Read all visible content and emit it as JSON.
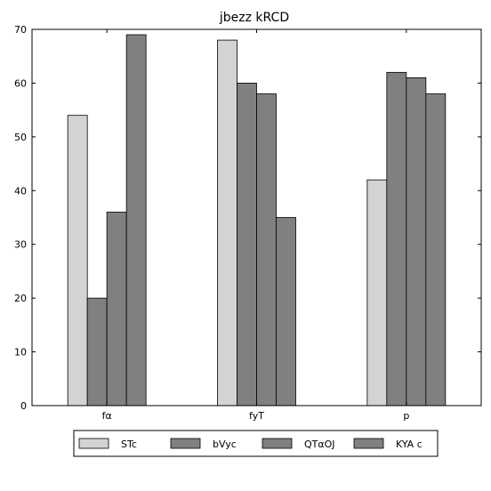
{
  "chart_data": {
    "type": "bar",
    "title": "jbezz kRCD",
    "xlabel": "",
    "ylabel": "",
    "categories": [
      "fα",
      "fyT",
      "p"
    ],
    "series": [
      {
        "name": "STc",
        "values": [
          54,
          68,
          42
        ],
        "color": "#d3d3d3"
      },
      {
        "name": "bVyc",
        "values": [
          20,
          60,
          62
        ],
        "color": "#808080"
      },
      {
        "name": "QTαOJ",
        "values": [
          36,
          58,
          61
        ],
        "color": "#808080"
      },
      {
        "name": "KYA c",
        "values": [
          69,
          35,
          58
        ],
        "color": "#808080"
      }
    ],
    "ylim": [
      0,
      70
    ],
    "yticks": [
      0,
      10,
      20,
      30,
      40,
      50,
      60,
      70
    ],
    "grid": false,
    "legend": "bottom"
  }
}
